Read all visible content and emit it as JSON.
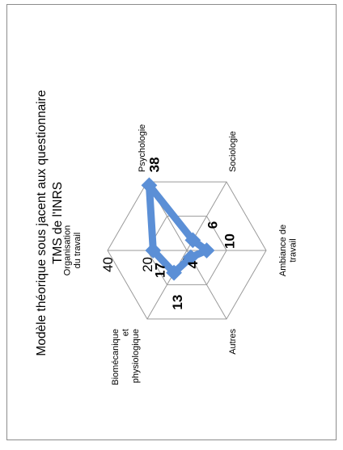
{
  "chart_data": {
    "type": "radar",
    "title_line1": "Modèle théorique sous jacent aux questionnaire",
    "title_line2": "TMS de l'INRS",
    "categories": [
      {
        "lines": [
          "Organisation",
          "du travail"
        ]
      },
      {
        "lines": [
          "Psychologie"
        ]
      },
      {
        "lines": [
          "Sociologie"
        ]
      },
      {
        "lines": [
          "Ambiance de",
          "travail"
        ]
      },
      {
        "lines": [
          "Autres"
        ]
      },
      {
        "lines": [
          "Biomécanique",
          "et",
          "physiologique"
        ]
      }
    ],
    "series": [
      {
        "name_lines": [
          "Modèle",
          "théorique",
          "sous jacent",
          "au",
          "questionnaire",
          "TMS"
        ],
        "values": [
          17,
          38,
          6,
          10,
          4,
          13
        ],
        "value_labels": [
          "17",
          "38",
          "6",
          "10",
          "4",
          "13"
        ],
        "color": "#5b8fd6"
      }
    ],
    "axis_ticks": [
      "0",
      "20",
      "40"
    ],
    "rmax": 40,
    "legend_position": "top-right",
    "grid": true
  }
}
